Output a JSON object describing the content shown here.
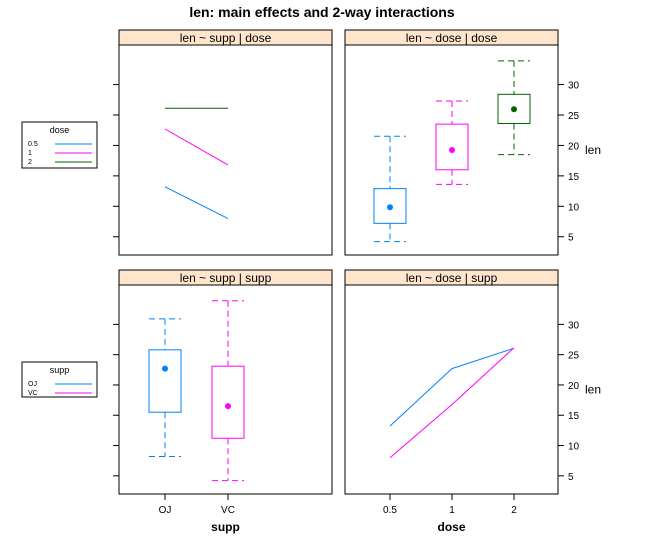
{
  "title": "len: main effects and 2-way interactions",
  "colors": {
    "strip": "#ffe5cc",
    "series": [
      "#0080ff",
      "#ff00ff",
      "#006400"
    ]
  },
  "chart_data": [
    {
      "type": "line",
      "strip": "len ~ supp | dose",
      "categories": [
        "OJ",
        "VC"
      ],
      "ylim": [
        2,
        36.5
      ],
      "series": [
        {
          "name": "0.5",
          "values": [
            13.2,
            7.98
          ]
        },
        {
          "name": "1",
          "values": [
            22.7,
            16.8
          ]
        },
        {
          "name": "2",
          "values": [
            26.1,
            26.1
          ]
        }
      ]
    },
    {
      "type": "box",
      "strip": "len ~ dose | dose",
      "categories": [
        "0.5",
        "1",
        "2"
      ],
      "ylim": [
        2,
        36.5
      ],
      "yticks": [
        5,
        10,
        15,
        20,
        25,
        30
      ],
      "ylabel": "len",
      "boxes": [
        {
          "min": 4.2,
          "q1": 7.2,
          "median": 9.85,
          "q3": 12.9,
          "max": 21.5
        },
        {
          "min": 13.6,
          "q1": 16.0,
          "median": 19.25,
          "q3": 23.5,
          "max": 27.3
        },
        {
          "min": 18.5,
          "q1": 23.6,
          "median": 25.95,
          "q3": 28.4,
          "max": 33.9
        }
      ]
    },
    {
      "type": "box",
      "strip": "len ~ supp | supp",
      "categories": [
        "OJ",
        "VC"
      ],
      "ylim": [
        2,
        36.5
      ],
      "xticks": [
        "OJ",
        "VC"
      ],
      "xlabel": "supp",
      "boxes": [
        {
          "min": 8.2,
          "q1": 15.5,
          "median": 22.7,
          "q3": 25.8,
          "max": 30.9
        },
        {
          "min": 4.2,
          "q1": 11.2,
          "median": 16.5,
          "q3": 23.1,
          "max": 33.9
        }
      ]
    },
    {
      "type": "line",
      "strip": "len ~ dose | supp",
      "categories": [
        "0.5",
        "1",
        "2"
      ],
      "ylim": [
        2,
        36.5
      ],
      "yticks": [
        5,
        10,
        15,
        20,
        25,
        30
      ],
      "xticks": [
        "0.5",
        "1",
        "2"
      ],
      "xlabel": "dose",
      "ylabel": "len",
      "series": [
        {
          "name": "OJ",
          "values": [
            13.23,
            22.7,
            26.06
          ]
        },
        {
          "name": "VC",
          "values": [
            7.98,
            16.77,
            26.14
          ]
        }
      ]
    }
  ],
  "legends": [
    {
      "title": "dose",
      "entries": [
        "0.5",
        "1",
        "2"
      ]
    },
    {
      "title": "supp",
      "entries": [
        "OJ",
        "VC"
      ]
    }
  ]
}
